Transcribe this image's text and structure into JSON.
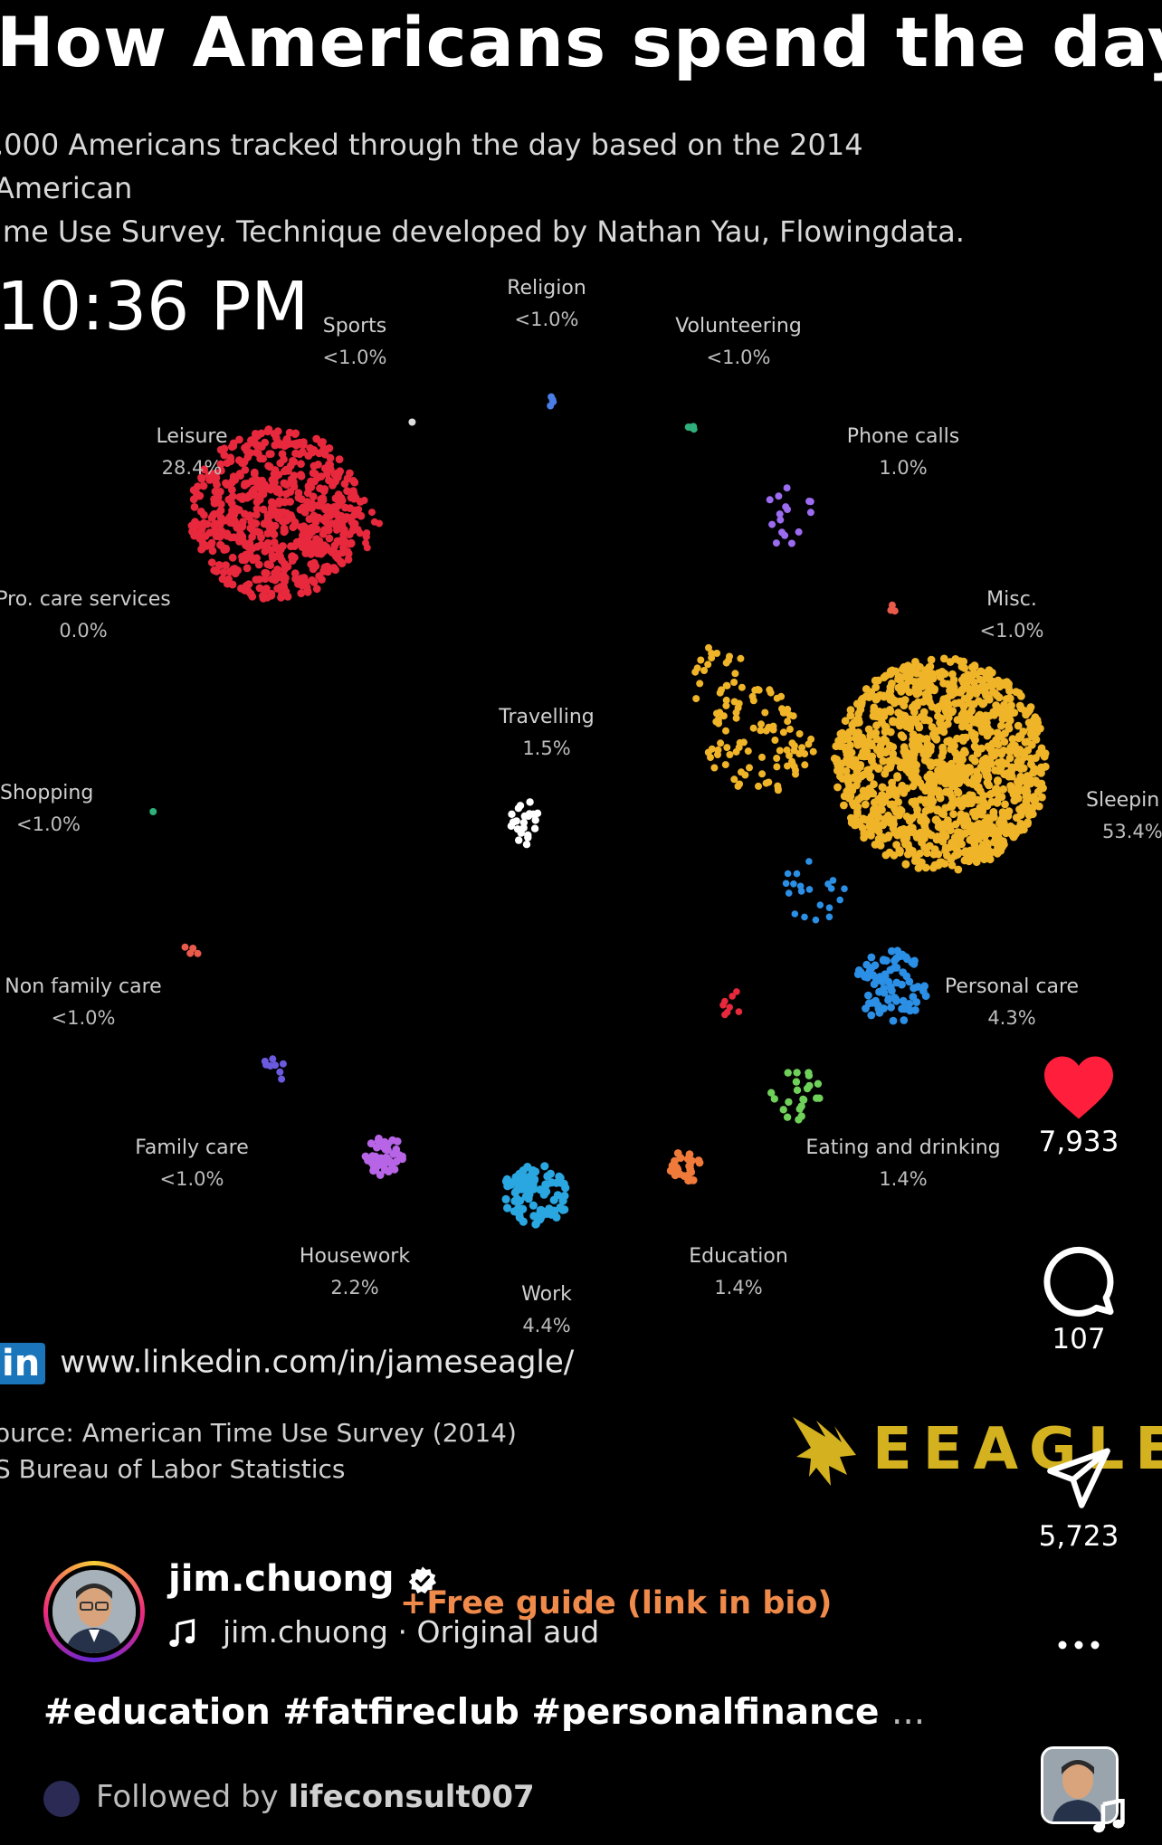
{
  "video": {
    "title": "How Americans spend the day",
    "subtitle_line1": ",000 Americans tracked through the day based on the 2014 American",
    "subtitle_line2": "ime Use Survey. Technique developed by Nathan Yau, Flowingdata.",
    "clock": "10:36 PM",
    "categories": [
      {
        "name": "Sports",
        "pct": "<1.0%"
      },
      {
        "name": "Religion",
        "pct": "<1.0%"
      },
      {
        "name": "Volunteering",
        "pct": "<1.0%"
      },
      {
        "name": "Leisure",
        "pct": "28.4%"
      },
      {
        "name": "Phone calls",
        "pct": "1.0%"
      },
      {
        "name": "Pro. care services",
        "pct": "0.0%"
      },
      {
        "name": "Misc.",
        "pct": "<1.0%"
      },
      {
        "name": "Travelling",
        "pct": "1.5%"
      },
      {
        "name": "Shopping",
        "pct": "<1.0%"
      },
      {
        "name": "Sleepin",
        "pct": "53.4%"
      },
      {
        "name": "Non family care",
        "pct": "<1.0%"
      },
      {
        "name": "Personal care",
        "pct": "4.3%"
      },
      {
        "name": "Family care",
        "pct": "<1.0%"
      },
      {
        "name": "Eating and drinking",
        "pct": "1.4%"
      },
      {
        "name": "Housework",
        "pct": "2.2%"
      },
      {
        "name": "Education",
        "pct": "1.4%"
      },
      {
        "name": "Work",
        "pct": "4.4%"
      }
    ],
    "colors": {
      "leisure": "#e8283c",
      "sleeping": "#f0b429",
      "work": "#2aa7e0",
      "personal_care": "#2b8fe6",
      "housework": "#b765e6",
      "education": "#f07a3a",
      "eating": "#6fd15a",
      "travelling": "#ffffff",
      "phone": "#9b6bf0",
      "volunteering": "#2fb07a",
      "religion": "#4a7de8",
      "family_care": "#6a5ae0",
      "non_family_care": "#e85a4a"
    },
    "linkedin_url": "www.linkedin.com/in/jameseagle/",
    "linkedin_badge": "in",
    "source_line1": "ource: American Time Use Survey (2014)",
    "source_line2": "S Bureau of Labor Statistics",
    "brand_text": "EEAGLE"
  },
  "actions": {
    "likes": "7,933",
    "comments": "107",
    "shares": "5,723"
  },
  "post": {
    "username": "jim.chuong",
    "promo": "+Free guide (link in bio)",
    "audio": "jim.chuong · Original aud",
    "hashtags": "#education #fatfireclub #personalfinance",
    "more": "...",
    "followed_prefix": "Followed by",
    "followed_user": "lifeconsult007"
  }
}
